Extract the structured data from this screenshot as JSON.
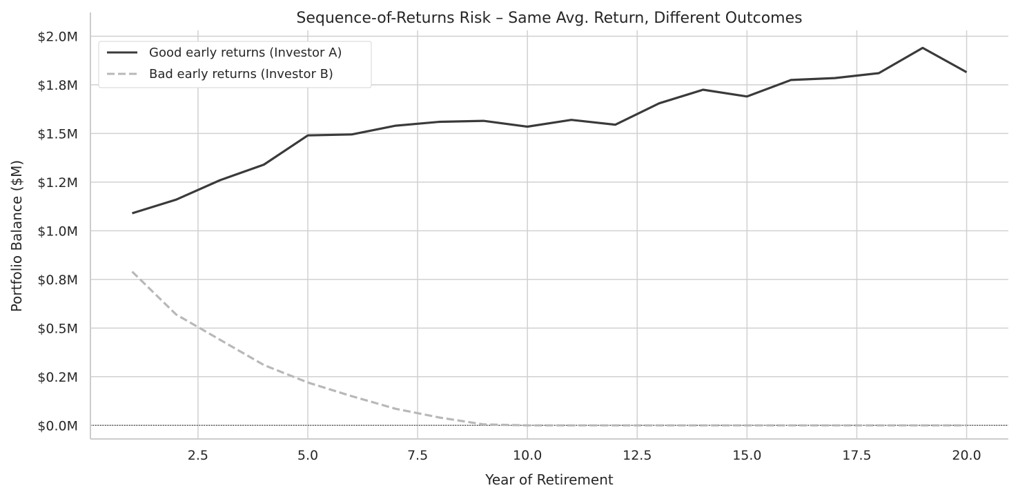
{
  "chart_data": {
    "type": "line",
    "title": "Sequence-of-Returns Risk – Same Avg. Return, Different Outcomes",
    "xlabel": "Year of Retirement",
    "ylabel": "Portfolio Balance ($M)",
    "xlim": [
      0.05,
      20.95
    ],
    "ylim": [
      -0.07,
      2.03
    ],
    "xticks": [
      2.5,
      5.0,
      7.5,
      10.0,
      12.5,
      15.0,
      17.5,
      20.0
    ],
    "xtick_labels": [
      "2.5",
      "5.0",
      "7.5",
      "10.0",
      "12.5",
      "15.0",
      "17.5",
      "20.0"
    ],
    "yticks": [
      0.0,
      0.25,
      0.5,
      0.75,
      1.0,
      1.25,
      1.5,
      1.75,
      2.0
    ],
    "ytick_labels": [
      "$0.0M",
      "$0.2M",
      "$0.5M",
      "$0.8M",
      "$1.0M",
      "$1.2M",
      "$1.5M",
      "$1.8M",
      "$2.0M"
    ],
    "grid": true,
    "legend_position": "top-left",
    "reference_line": {
      "y": 0,
      "style": "dotted",
      "color": "#333333"
    },
    "x": [
      1,
      2,
      3,
      4,
      5,
      6,
      7,
      8,
      9,
      10,
      11,
      12,
      13,
      14,
      15,
      16,
      17,
      18,
      19,
      20
    ],
    "series": [
      {
        "name": "Good early returns (Investor A)",
        "color": "#3a3a3a",
        "style": "solid",
        "values": [
          1.09,
          1.16,
          1.26,
          1.34,
          1.49,
          1.495,
          1.54,
          1.56,
          1.565,
          1.535,
          1.57,
          1.545,
          1.655,
          1.725,
          1.69,
          1.775,
          1.785,
          1.81,
          1.94,
          1.815
        ]
      },
      {
        "name": "Bad early returns (Investor B)",
        "color": "#b8b8b8",
        "style": "dashed",
        "values": [
          0.79,
          0.57,
          0.44,
          0.31,
          0.22,
          0.15,
          0.085,
          0.04,
          0.005,
          0,
          0,
          0,
          0,
          0,
          0,
          0,
          0,
          0,
          0,
          0
        ]
      }
    ]
  }
}
